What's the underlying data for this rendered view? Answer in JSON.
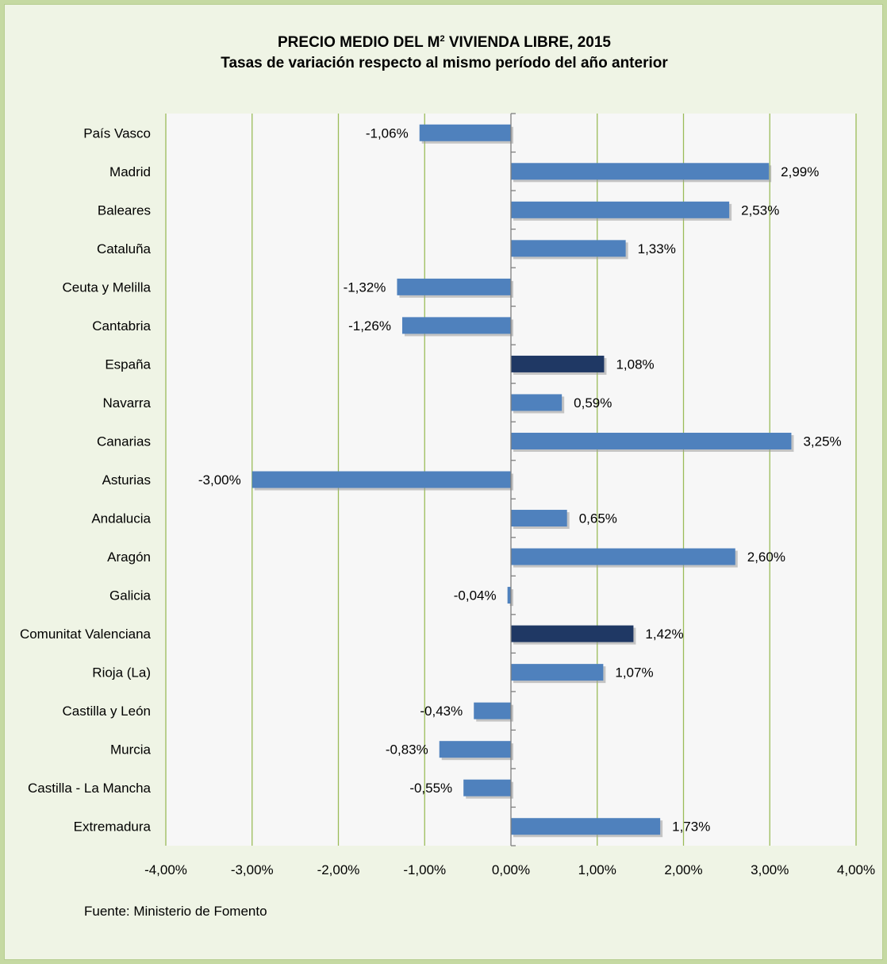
{
  "title": {
    "line1_pre": "PRECIO MEDIO DEL M",
    "line1_sup": "2",
    "line1_post": " VIVIENDA LIBRE, 2015",
    "line2": "Tasas de variación respecto al mismo período del año anterior"
  },
  "source": "Fuente: Ministerio de Fomento",
  "colors": {
    "bar": "#4f81bd",
    "bar_highlight": "#1f3864",
    "grid": "#9bbb59",
    "plot_bg": "#f7f7f7"
  },
  "chart_data": {
    "type": "bar",
    "orientation": "horizontal",
    "categories": [
      "País Vasco",
      "Madrid",
      "Baleares",
      "Cataluña",
      "Ceuta y Melilla",
      "Cantabria",
      "España",
      "Navarra",
      "Canarias",
      "Asturias",
      "Andalucia",
      "Aragón",
      "Galicia",
      "Comunitat Valenciana",
      "Rioja (La)",
      "Castilla y León",
      "Murcia",
      "Castilla - La Mancha",
      "Extremadura"
    ],
    "values": [
      -1.06,
      2.99,
      2.53,
      1.33,
      -1.32,
      -1.26,
      1.08,
      0.59,
      3.25,
      -3.0,
      0.65,
      2.6,
      -0.04,
      1.42,
      1.07,
      -0.43,
      -0.83,
      -0.55,
      1.73
    ],
    "value_labels": [
      "-1,06%",
      "2,99%",
      "2,53%",
      "1,33%",
      "-1,32%",
      "-1,26%",
      "1,08%",
      "0,59%",
      "3,25%",
      "-3,00%",
      "0,65%",
      "2,60%",
      "-0,04%",
      "1,42%",
      "1,07%",
      "-0,43%",
      "-0,83%",
      "-0,55%",
      "1,73%"
    ],
    "highlighted": [
      "España",
      "Comunitat Valenciana"
    ],
    "xlim": [
      -4,
      4
    ],
    "xticks": [
      -4,
      -3,
      -2,
      -1,
      0,
      1,
      2,
      3,
      4
    ],
    "xtick_labels": [
      "-4,00%",
      "-3,00%",
      "-2,00%",
      "-1,00%",
      "0,00%",
      "1,00%",
      "2,00%",
      "3,00%",
      "4,00%"
    ],
    "grid": "vertical",
    "legend": "none"
  }
}
